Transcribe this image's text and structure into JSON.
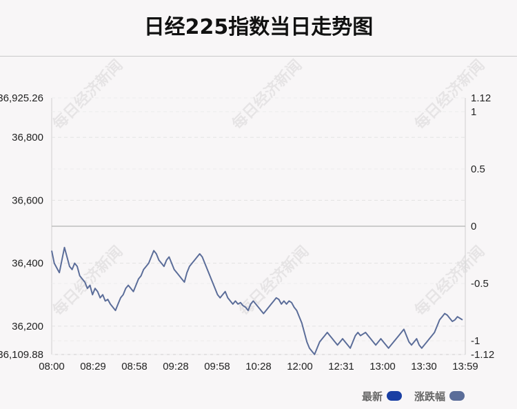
{
  "title": "日经225指数当日走势图",
  "watermark": "每日经济新闻",
  "legend": [
    {
      "label": "最新",
      "color": "#1a3fa3"
    },
    {
      "label": "涨跌幅",
      "color": "#5b6d99"
    }
  ],
  "chart_data": {
    "type": "line",
    "title": "日经225指数当日走势图",
    "x_ticks": [
      "08:00",
      "08:29",
      "08:58",
      "09:28",
      "09:58",
      "10:28",
      "12:00",
      "12:31",
      "13:00",
      "13:30",
      "13:59"
    ],
    "y_left": {
      "ticks": [
        "36,925.26",
        "36,800",
        "36,600",
        "36,400",
        "36,200",
        "36,109.88"
      ],
      "range": [
        36109.88,
        36925.26
      ]
    },
    "y_right": {
      "ticks": [
        "1.12",
        "1",
        "0.5",
        "0",
        "-0.5",
        "-1",
        "-1.12"
      ],
      "range": [
        -1.12,
        1.12
      ]
    },
    "baseline": 36517.57,
    "line_color": "#5b6d99",
    "series": [
      {
        "values": [
          36440,
          36400,
          36385,
          36370,
          36410,
          36450,
          36420,
          36390,
          36380,
          36400,
          36390,
          36360,
          36350,
          36340,
          36320,
          36330,
          36300,
          36320,
          36310,
          36290,
          36300,
          36280,
          36285,
          36270,
          36260,
          36250,
          36270,
          36290,
          36300,
          36320,
          36330,
          36320,
          36310,
          36330,
          36350,
          36360,
          36380,
          36390,
          36400,
          36420,
          36440,
          36430,
          36410,
          36400,
          36390,
          36410,
          36420,
          36400,
          36380,
          36370,
          36360,
          36350,
          36340,
          36370,
          36390,
          36400,
          36410,
          36420,
          36430,
          36420,
          36400,
          36380,
          36360,
          36340,
          36320,
          36300,
          36290,
          36300,
          36310,
          36290,
          36280,
          36270,
          36280,
          36270,
          36275,
          36265,
          36260,
          36250,
          36270,
          36280,
          36270,
          36260,
          36250,
          36240,
          36250,
          36260,
          36270,
          36280,
          36290,
          36285,
          36270,
          36280,
          36270,
          36280,
          36275,
          36260,
          36250,
          36230,
          36210,
          36180,
          36150,
          36130,
          36120,
          36110,
          36130,
          36150,
          36160,
          36170,
          36180,
          36170,
          36160,
          36150,
          36140,
          36150,
          36160,
          36150,
          36140,
          36130,
          36150,
          36170,
          36180,
          36170,
          36175,
          36180,
          36170,
          36160,
          36150,
          36140,
          36150,
          36160,
          36150,
          36140,
          36130,
          36140,
          36150,
          36160,
          36170,
          36180,
          36190,
          36170,
          36150,
          36140,
          36150,
          36160,
          36140,
          36130,
          36140,
          36150,
          36160,
          36170,
          36180,
          36200,
          36220,
          36230,
          36240,
          36235,
          36225,
          36215,
          36220,
          36230,
          36225,
          36220
        ]
      }
    ]
  }
}
